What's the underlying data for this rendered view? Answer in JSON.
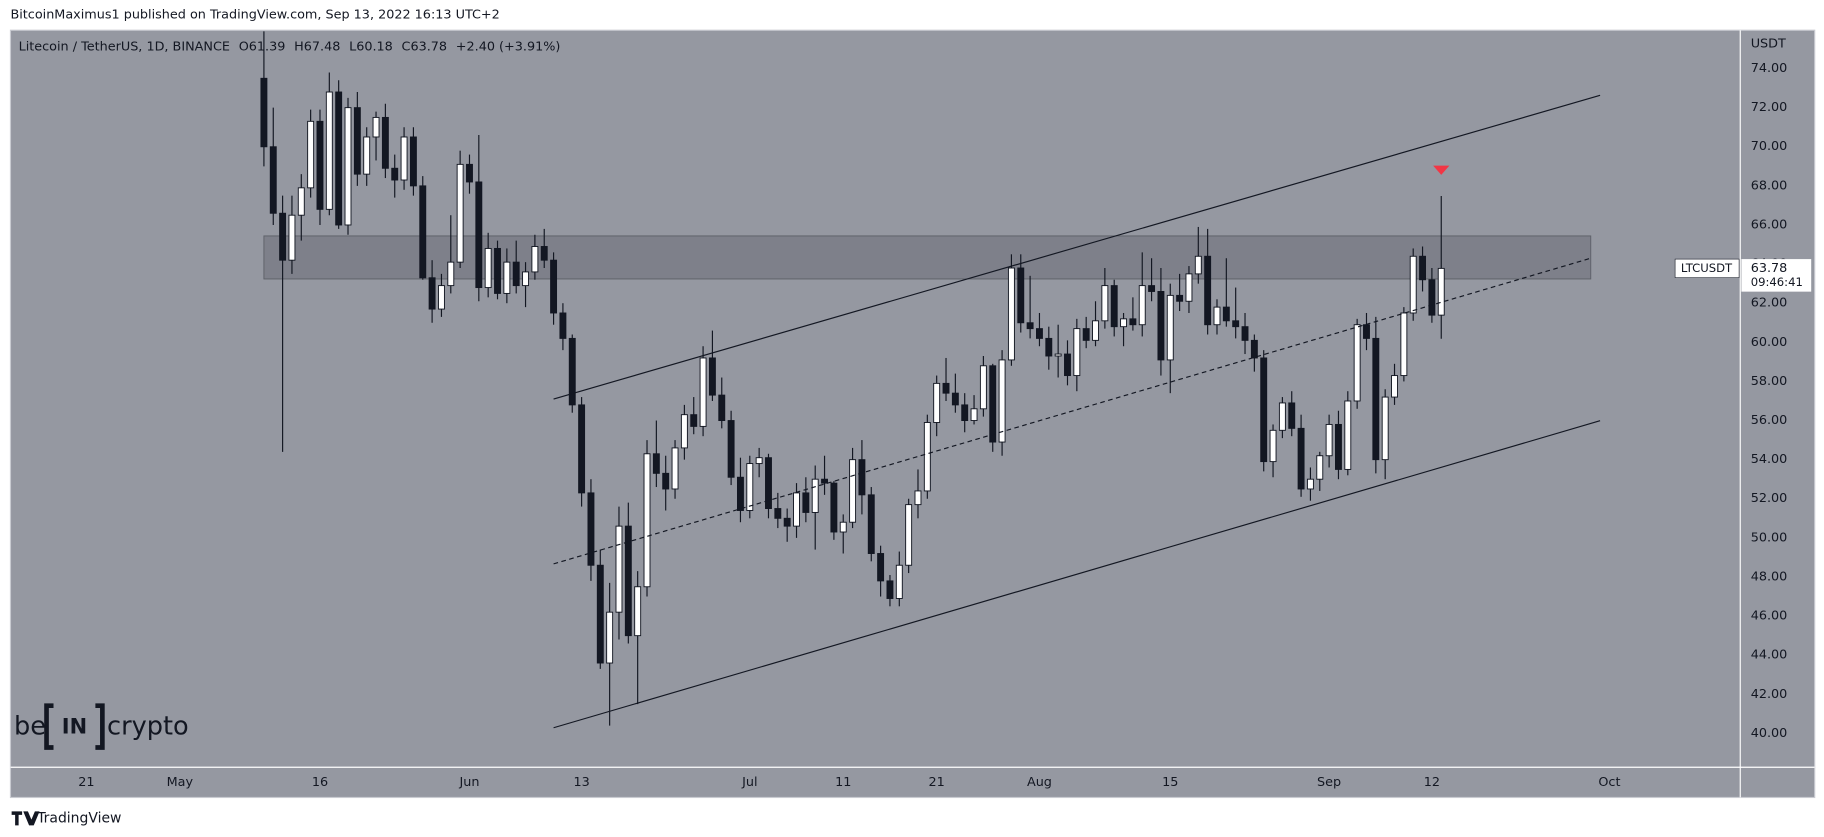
{
  "header": "BitcoinMaximus1 published on TradingView.com, Sep 13, 2022 16:13 UTC+2",
  "chart_data": {
    "type": "candlestick",
    "legend_title": "Litecoin / TetherUS, 1D, BINANCE",
    "ohlc_labels": [
      "O61.39",
      "H67.48",
      "L60.18",
      "C63.78",
      "+2.40 (+3.91%)"
    ],
    "currency": "USDT",
    "symbol_label": "LTCUSDT",
    "countdown": "09:46:41",
    "up_color": "#ffffff",
    "down_color": "#131722",
    "x": [
      "2022-05-10",
      "2022-05-11",
      "2022-05-12",
      "2022-05-13",
      "2022-05-14",
      "2022-05-15",
      "2022-05-16",
      "2022-05-17",
      "2022-05-18",
      "2022-05-19",
      "2022-05-20",
      "2022-05-21",
      "2022-05-22",
      "2022-05-23",
      "2022-05-24",
      "2022-05-25",
      "2022-05-26",
      "2022-05-27",
      "2022-05-28",
      "2022-05-29",
      "2022-05-30",
      "2022-05-31",
      "2022-06-01",
      "2022-06-02",
      "2022-06-03",
      "2022-06-04",
      "2022-06-05",
      "2022-06-06",
      "2022-06-07",
      "2022-06-08",
      "2022-06-09",
      "2022-06-10",
      "2022-06-11",
      "2022-06-12",
      "2022-06-13",
      "2022-06-14",
      "2022-06-15",
      "2022-06-16",
      "2022-06-17",
      "2022-06-18",
      "2022-06-19",
      "2022-06-20",
      "2022-06-21",
      "2022-06-22",
      "2022-06-23",
      "2022-06-24",
      "2022-06-25",
      "2022-06-26",
      "2022-06-27",
      "2022-06-28",
      "2022-06-29",
      "2022-06-30",
      "2022-07-01",
      "2022-07-02",
      "2022-07-03",
      "2022-07-04",
      "2022-07-05",
      "2022-07-06",
      "2022-07-07",
      "2022-07-08",
      "2022-07-09",
      "2022-07-10",
      "2022-07-11",
      "2022-07-12",
      "2022-07-13",
      "2022-07-14",
      "2022-07-15",
      "2022-07-16",
      "2022-07-17",
      "2022-07-18",
      "2022-07-19",
      "2022-07-20",
      "2022-07-21",
      "2022-07-22",
      "2022-07-23",
      "2022-07-24",
      "2022-07-25",
      "2022-07-26",
      "2022-07-27",
      "2022-07-28",
      "2022-07-29",
      "2022-07-30",
      "2022-07-31",
      "2022-08-01",
      "2022-08-02",
      "2022-08-03",
      "2022-08-04",
      "2022-08-05",
      "2022-08-06",
      "2022-08-07",
      "2022-08-08",
      "2022-08-09",
      "2022-08-10",
      "2022-08-11",
      "2022-08-12",
      "2022-08-13",
      "2022-08-14",
      "2022-08-15",
      "2022-08-16",
      "2022-08-17",
      "2022-08-18",
      "2022-08-19",
      "2022-08-20",
      "2022-08-21",
      "2022-08-22",
      "2022-08-23",
      "2022-08-24",
      "2022-08-25",
      "2022-08-26",
      "2022-08-27",
      "2022-08-28",
      "2022-08-29",
      "2022-08-30",
      "2022-08-31",
      "2022-09-01",
      "2022-09-02",
      "2022-09-03",
      "2022-09-04",
      "2022-09-05",
      "2022-09-06",
      "2022-09-07",
      "2022-09-08",
      "2022-09-09",
      "2022-09-10",
      "2022-09-11",
      "2022-09-12",
      "2022-09-13"
    ],
    "open": [
      73.5,
      70,
      66.6,
      64.2,
      66.5,
      67.9,
      71.3,
      66.8,
      72.8,
      66,
      72,
      68.6,
      70.5,
      71.5,
      68.9,
      68.3,
      70.5,
      68,
      63.3,
      61.7,
      62.9,
      64.1,
      69.1,
      68.2,
      62.8,
      64.8,
      62.5,
      64.1,
      62.9,
      63.6,
      64.9,
      64.2,
      61.5,
      60.2,
      56.8,
      52.3,
      48.6,
      43.6,
      46.2,
      50.6,
      45,
      47.5,
      54.3,
      53.3,
      52.5,
      54.6,
      56.3,
      55.7,
      59.2,
      57.3,
      56,
      53.1,
      51.4,
      53.8,
      54.1,
      51.5,
      51,
      50.6,
      52.3,
      51.3,
      53,
      52.8,
      50.3,
      50.8,
      54,
      52.2,
      49.2,
      47.8,
      46.9,
      48.6,
      51.7,
      52.4,
      55.9,
      57.9,
      57.4,
      56.8,
      56,
      56.6,
      58.8,
      54.9,
      59.1,
      63.8,
      61,
      60.7,
      60.2,
      59.3,
      59.4,
      58.3,
      60.7,
      60.1,
      61.1,
      62.9,
      60.8,
      61.2,
      60.9,
      62.9,
      62.6,
      59.1,
      62.4,
      62.1,
      63.5,
      64.4,
      60.9,
      61.8,
      61.1,
      60.8,
      60.1,
      59.2,
      53.9,
      55.5,
      56.9,
      55.6,
      52.5,
      53,
      54.2,
      55.8,
      53.5,
      57,
      60.9,
      60.2,
      54,
      57.2,
      58.3,
      61.5,
      64.4,
      63.2,
      61.39
    ],
    "high": [
      77,
      72,
      67.5,
      67.5,
      68.6,
      71.9,
      71.9,
      73.8,
      73.4,
      72.5,
      72.8,
      71,
      71.8,
      72.2,
      69.6,
      71,
      71,
      68.5,
      64.2,
      63.5,
      66.5,
      69.8,
      69.6,
      70.6,
      65.6,
      65.2,
      64.8,
      65.2,
      64.1,
      65.5,
      65.8,
      64.6,
      62,
      60.4,
      57.2,
      53,
      49.4,
      47.7,
      51.6,
      51.8,
      48.3,
      55,
      56,
      54.2,
      55,
      56.8,
      57.2,
      59.8,
      60.6,
      58.2,
      56.5,
      54.1,
      54.2,
      54.6,
      54.3,
      52.3,
      51.5,
      52.8,
      53.1,
      53.7,
      54.2,
      52.9,
      51.2,
      54.6,
      55,
      52.6,
      49.6,
      48.1,
      49.3,
      52,
      53.5,
      56.3,
      58.3,
      59.2,
      58.4,
      57.4,
      57.3,
      59.3,
      58.9,
      59.6,
      64.5,
      64.5,
      63.4,
      61.5,
      60.8,
      60.9,
      60.1,
      61.2,
      61.3,
      62.1,
      63.8,
      63.2,
      61.5,
      62.3,
      64.6,
      64.3,
      63.8,
      63,
      63.5,
      63.9,
      65.9,
      65.8,
      62.2,
      64.3,
      62.8,
      61.5,
      60.4,
      59.6,
      55.8,
      57.2,
      57.5,
      56.3,
      53.6,
      54.4,
      56.3,
      56.5,
      57.5,
      61.2,
      61.5,
      61.3,
      57.6,
      58.9,
      61.8,
      64.8,
      64.9,
      63.8,
      67.48
    ],
    "low": [
      69,
      66,
      54.4,
      63.5,
      65.2,
      67.4,
      66,
      66.5,
      65.8,
      65.5,
      68,
      68,
      69.3,
      68.4,
      67.4,
      67.8,
      67.5,
      63.2,
      61,
      61.3,
      62.5,
      63.8,
      67.6,
      62.1,
      62.3,
      62.2,
      62,
      62.5,
      61.8,
      63.2,
      63.8,
      60.9,
      59.6,
      56.4,
      51.6,
      47.8,
      43.3,
      40.4,
      44.8,
      44.6,
      41.5,
      47,
      52.6,
      51.4,
      52,
      54,
      55.3,
      55.2,
      57,
      55.6,
      52.7,
      50.8,
      51,
      53.1,
      51,
      50.5,
      49.8,
      50,
      50.8,
      49.4,
      52.2,
      49.9,
      49.2,
      50.5,
      51.2,
      48.8,
      47,
      46.5,
      46.5,
      48.2,
      51,
      52,
      55.2,
      57,
      56.4,
      55.4,
      55.8,
      56.2,
      54.4,
      54.2,
      58.8,
      60.5,
      60.2,
      59.8,
      58.6,
      58.2,
      57.8,
      57.5,
      59.7,
      59.8,
      60.7,
      60.3,
      59.8,
      60.6,
      60.3,
      62.1,
      58.3,
      57.4,
      61.6,
      61.5,
      63,
      60.4,
      60.4,
      60.8,
      60.2,
      59.4,
      58.5,
      53.4,
      53.1,
      55.1,
      55.2,
      52.1,
      51.9,
      52.4,
      53.6,
      53,
      53.2,
      56.6,
      59.6,
      53.3,
      53,
      56.8,
      58,
      61.1,
      62.6,
      61,
      60.18
    ],
    "close": [
      70,
      66.6,
      64.2,
      66.5,
      67.9,
      71.3,
      66.8,
      72.8,
      66,
      72,
      68.6,
      70.5,
      71.5,
      68.9,
      68.3,
      70.5,
      68,
      63.3,
      61.7,
      62.9,
      64.1,
      69.1,
      68.2,
      62.8,
      64.8,
      62.5,
      64.1,
      62.9,
      63.6,
      64.9,
      64.2,
      61.5,
      60.2,
      56.8,
      52.3,
      48.6,
      43.6,
      46.2,
      50.6,
      45,
      47.5,
      54.3,
      53.3,
      52.5,
      54.6,
      56.3,
      55.7,
      59.2,
      57.3,
      56,
      53.1,
      51.4,
      53.8,
      54.1,
      51.5,
      51,
      50.6,
      52.3,
      51.3,
      53,
      52.8,
      50.3,
      50.8,
      54,
      52.2,
      49.2,
      47.8,
      46.9,
      48.6,
      51.7,
      52.4,
      55.9,
      57.9,
      57.4,
      56.8,
      56,
      56.6,
      58.8,
      54.9,
      59.1,
      63.8,
      61,
      60.7,
      60.2,
      59.3,
      59.4,
      58.3,
      60.7,
      60.1,
      61.1,
      62.9,
      60.8,
      61.2,
      60.9,
      62.9,
      62.6,
      59.1,
      62.4,
      62.1,
      63.5,
      64.4,
      60.9,
      61.8,
      61.1,
      60.8,
      60.1,
      59.2,
      53.9,
      55.5,
      56.9,
      55.6,
      52.5,
      53,
      54.2,
      55.8,
      53.5,
      57,
      60.9,
      60.2,
      54,
      57.2,
      58.3,
      61.5,
      64.4,
      63.2,
      61.39,
      63.78
    ],
    "xlim": [
      "2022-04-13",
      "2022-10-15"
    ],
    "xticks": [
      {
        "value": "2022-04-21",
        "label": "21"
      },
      {
        "value": "2022-05-01",
        "label": "May"
      },
      {
        "value": "2022-05-16",
        "label": "16"
      },
      {
        "value": "2022-06-01",
        "label": "Jun"
      },
      {
        "value": "2022-06-13",
        "label": "13"
      },
      {
        "value": "2022-07-01",
        "label": "Jul"
      },
      {
        "value": "2022-07-11",
        "label": "11"
      },
      {
        "value": "2022-07-21",
        "label": "21"
      },
      {
        "value": "2022-08-01",
        "label": "Aug"
      },
      {
        "value": "2022-08-15",
        "label": "15"
      },
      {
        "value": "2022-09-01",
        "label": "Sep"
      },
      {
        "value": "2022-09-12",
        "label": "12"
      },
      {
        "value": "2022-10-01",
        "label": "Oct"
      }
    ],
    "ylim": [
      38.27,
      75.9
    ],
    "yticks": [
      {
        "value": 40,
        "label": "40.00"
      },
      {
        "value": 42,
        "label": "42.00"
      },
      {
        "value": 44,
        "label": "44.00"
      },
      {
        "value": 46,
        "label": "46.00"
      },
      {
        "value": 48,
        "label": "48.00"
      },
      {
        "value": 50,
        "label": "50.00"
      },
      {
        "value": 52,
        "label": "52.00"
      },
      {
        "value": 54,
        "label": "54.00"
      },
      {
        "value": 56,
        "label": "56.00"
      },
      {
        "value": 58,
        "label": "58.00"
      },
      {
        "value": 60,
        "label": "60.00"
      },
      {
        "value": 62,
        "label": "62.00"
      },
      {
        "value": 64,
        "label": "64.00"
      },
      {
        "value": 66,
        "label": "66.00"
      },
      {
        "value": 68,
        "label": "68.00"
      },
      {
        "value": 70,
        "label": "70.00"
      },
      {
        "value": 72,
        "label": "72.00"
      },
      {
        "value": 74,
        "label": "74.00"
      }
    ],
    "zone": {
      "x": [
        "2022-05-10",
        "2022-09-29"
      ],
      "y": [
        63.24,
        65.44
      ]
    },
    "lines": [
      {
        "style": "solid",
        "x": [
          "2022-06-10",
          "2022-09-30"
        ],
        "y": [
          57.1,
          72.63
        ]
      },
      {
        "style": "solid",
        "x": [
          "2022-06-10",
          "2022-09-30"
        ],
        "y": [
          40.29,
          55.99
        ]
      },
      {
        "style": "dashed",
        "x": [
          "2022-06-10",
          "2022-09-29"
        ],
        "y": [
          48.67,
          64.3
        ]
      }
    ],
    "marker": {
      "x": "2022-09-13",
      "y": 68.8,
      "color": "#f23645"
    }
  },
  "watermark": {
    "prefix": "be",
    "mark": "IN",
    "suffix": "crypto"
  },
  "footer": "TradingView"
}
